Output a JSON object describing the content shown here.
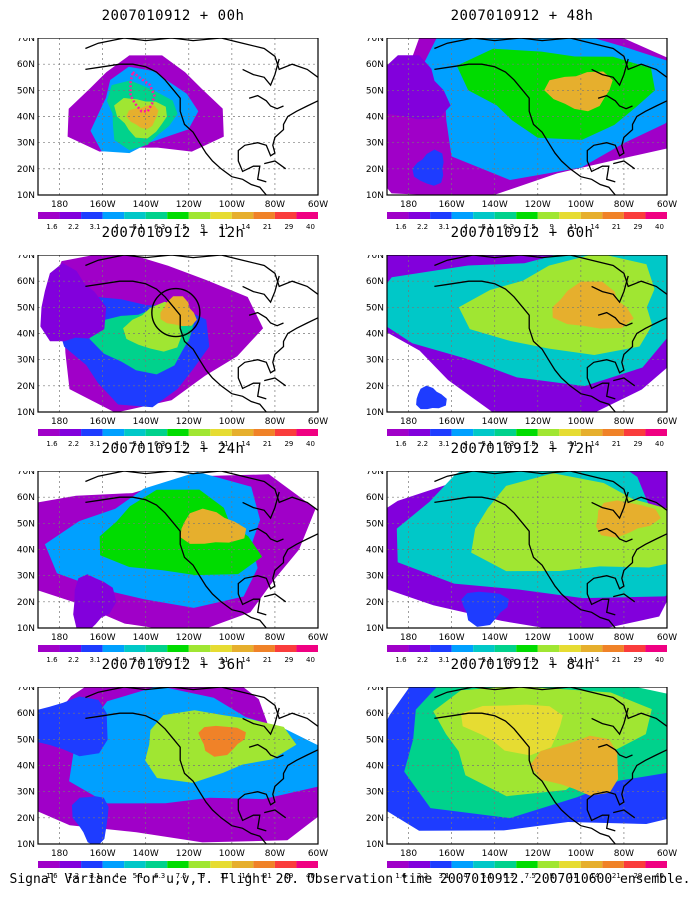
{
  "figure": {
    "caption": "Signal Variance for u,v,T. Flight 20. Observation time 2007010912. 2007010600 ensemble."
  },
  "axes": {
    "lat_labels": [
      "10N",
      "20N",
      "30N",
      "40N",
      "50N",
      "60N",
      "70N"
    ],
    "lon_labels": [
      "180",
      "160W",
      "140W",
      "120W",
      "100W",
      "80W",
      "60W"
    ]
  },
  "colorbar": {
    "labels": [
      "1.6",
      "2.2",
      "3.1",
      "4",
      "5.1",
      "6.3",
      "7.5",
      "9",
      "11",
      "14",
      "21",
      "29",
      "40"
    ],
    "colors": [
      "#a000c8",
      "#8200dc",
      "#1e3cff",
      "#00a0ff",
      "#00c8c8",
      "#00d28c",
      "#00dc00",
      "#a0e632",
      "#e6dc32",
      "#e6af2d",
      "#f08228",
      "#fa3c3c",
      "#f00082"
    ]
  },
  "panels": [
    {
      "id": "p00",
      "title": "2007010912 + 00h",
      "forecast_hour": 0
    },
    {
      "id": "p48",
      "title": "2007010912 + 48h",
      "forecast_hour": 48
    },
    {
      "id": "p12",
      "title": "2007010912 + 12h",
      "forecast_hour": 12
    },
    {
      "id": "p60",
      "title": "2007010912 + 60h",
      "forecast_hour": 60
    },
    {
      "id": "p24",
      "title": "2007010912 + 24h",
      "forecast_hour": 24
    },
    {
      "id": "p72",
      "title": "2007010912 + 72h",
      "forecast_hour": 72
    },
    {
      "id": "p36",
      "title": "2007010912 + 36h",
      "forecast_hour": 36
    },
    {
      "id": "p84",
      "title": "2007010912 + 84h",
      "forecast_hour": 84
    }
  ]
}
